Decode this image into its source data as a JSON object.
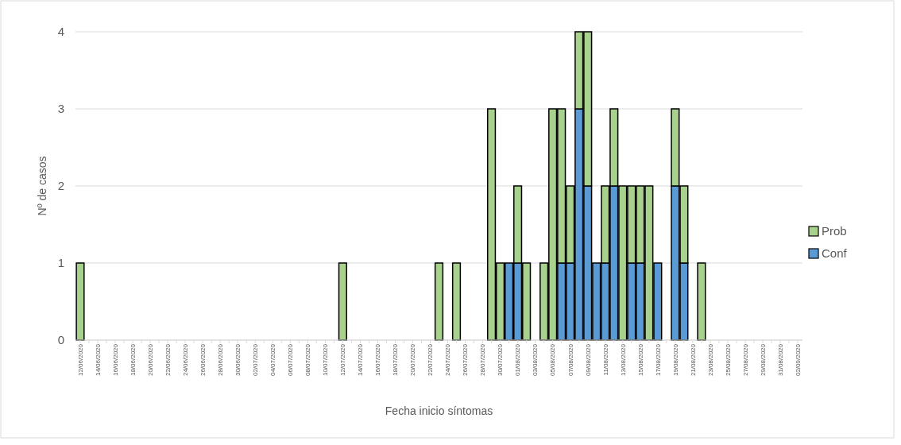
{
  "chart_data": {
    "type": "bar",
    "stacked": true,
    "xlabel": "Fecha inicio síntomas",
    "ylabel": "Nº de casos",
    "categories": [
      "12/06/2020",
      null,
      "14/06/2020",
      null,
      "16/06/2020",
      null,
      "18/06/2020",
      null,
      "20/06/2020",
      null,
      "22/06/2020",
      null,
      "24/06/2020",
      null,
      "26/06/2020",
      null,
      "28/06/2020",
      null,
      "30/06/2020",
      null,
      "02/07/2020",
      null,
      "04/07/2020",
      null,
      "06/07/2020",
      null,
      "08/07/2020",
      null,
      "10/07/2020",
      null,
      "12/07/2020",
      null,
      "14/07/2020",
      null,
      "16/07/2020",
      null,
      "18/07/2020",
      null,
      "20/07/2020",
      null,
      "22/07/2020",
      null,
      "24/07/2020",
      null,
      "26/07/2020",
      null,
      "28/07/2020",
      null,
      "30/07/2020",
      null,
      "01/08/2020",
      null,
      "03/08/2020",
      null,
      "05/08/2020",
      null,
      "07/08/2020",
      null,
      "09/08/2020",
      null,
      "11/08/2020",
      null,
      "13/08/2020",
      null,
      "15/08/2020",
      null,
      "17/08/2020",
      null,
      "19/08/2020",
      null,
      "21/08/2020",
      null,
      "23/08/2020",
      null,
      "25/08/2020",
      null,
      "27/08/2020",
      null,
      "29/08/2020",
      null,
      "31/08/2020",
      null,
      "02/09/2020"
    ],
    "series": [
      {
        "name": "Conf",
        "color": "#5b9bd5",
        "values": [
          0,
          0,
          0,
          0,
          0,
          0,
          0,
          0,
          0,
          0,
          0,
          0,
          0,
          0,
          0,
          0,
          0,
          0,
          0,
          0,
          0,
          0,
          0,
          0,
          0,
          0,
          0,
          0,
          0,
          0,
          0,
          0,
          0,
          0,
          0,
          0,
          0,
          0,
          0,
          0,
          0,
          0,
          0,
          0,
          0,
          0,
          0,
          0,
          0,
          1,
          1,
          0,
          0,
          0,
          0,
          1,
          1,
          3,
          2,
          1,
          1,
          2,
          0,
          1,
          1,
          0,
          1,
          0,
          2,
          1,
          0,
          0,
          0,
          0,
          0,
          0,
          0,
          0,
          0,
          0,
          0,
          0,
          0
        ]
      },
      {
        "name": "Prob",
        "color": "#a9d18e",
        "values": [
          1,
          0,
          0,
          0,
          0,
          0,
          0,
          0,
          0,
          0,
          0,
          0,
          0,
          0,
          0,
          0,
          0,
          0,
          0,
          0,
          0,
          0,
          0,
          0,
          0,
          0,
          0,
          0,
          0,
          0,
          1,
          0,
          0,
          0,
          0,
          0,
          0,
          0,
          0,
          0,
          0,
          1,
          0,
          1,
          0,
          0,
          0,
          3,
          1,
          0,
          1,
          1,
          0,
          1,
          3,
          2,
          1,
          1,
          2,
          0,
          1,
          1,
          2,
          1,
          1,
          2,
          0,
          0,
          1,
          1,
          0,
          1,
          0,
          0,
          0,
          0,
          0,
          0,
          0,
          0,
          0,
          0,
          0
        ]
      }
    ],
    "ylim": [
      0,
      4
    ],
    "yticks": [
      0,
      1,
      2,
      3,
      4
    ],
    "grid": "y",
    "legend": "right"
  }
}
